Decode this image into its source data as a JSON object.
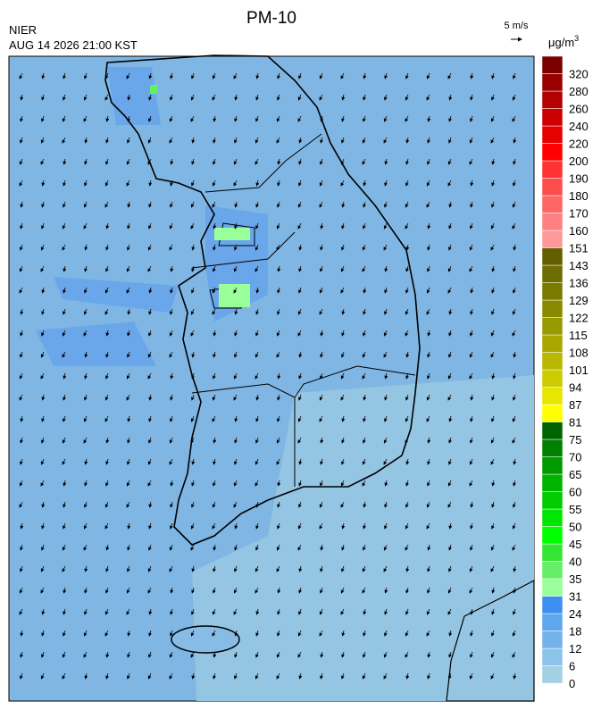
{
  "header": {
    "title": "PM-10",
    "agency": "NIER",
    "timestamp": "AUG 14 2026 21:00 KST"
  },
  "wind_reference": {
    "label": "5 m/s"
  },
  "colorbar": {
    "unit": "μg/m",
    "unit_superscript": "3",
    "ticks": [
      0,
      6,
      12,
      18,
      24,
      31,
      35,
      40,
      45,
      50,
      55,
      60,
      65,
      70,
      75,
      81,
      87,
      94,
      101,
      108,
      115,
      122,
      129,
      136,
      143,
      151,
      160,
      170,
      180,
      190,
      200,
      220,
      240,
      260,
      280,
      320
    ],
    "colors": [
      "#a3d0e2",
      "#8cc3e8",
      "#74b3ea",
      "#5ea6ee",
      "#3d90f2",
      "#99ff99",
      "#66ee66",
      "#33e633",
      "#00ff00",
      "#00e600",
      "#00cc00",
      "#00b300",
      "#009900",
      "#008000",
      "#006400",
      "#ffff00",
      "#e6e600",
      "#cccc00",
      "#b8b800",
      "#a8a800",
      "#999900",
      "#8a8a00",
      "#7a7a00",
      "#6e6e00",
      "#635e00",
      "#ff9999",
      "#ff8080",
      "#ff6666",
      "#ff4d4d",
      "#ff3333",
      "#ff0000",
      "#e60000",
      "#cc0000",
      "#b30000",
      "#990000",
      "#7a0000"
    ]
  }
}
